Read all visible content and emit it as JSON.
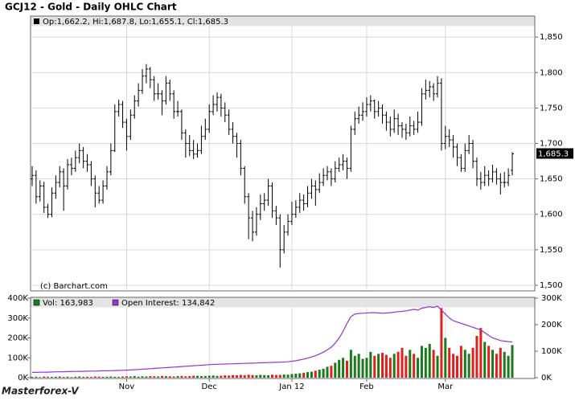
{
  "chart_data": {
    "type": "ohlc",
    "title": "GCJ12 - Gold - Daily OHLC Chart",
    "header": "Op:1,662.2, Hi:1,687.8, Lo:1,655.1, Cl:1,685.3",
    "credit": "(c) Barchart.com",
    "watermark": "Masterforex-V",
    "color": "#000000",
    "last_price_label": "1,685.3",
    "grid": true,
    "ylim": [
      1492,
      1865
    ],
    "yticks": [
      {
        "value": 1500,
        "label": "1,500"
      },
      {
        "value": 1550,
        "label": "1,550"
      },
      {
        "value": 1600,
        "label": "1,600"
      },
      {
        "value": 1650,
        "label": "1,650"
      },
      {
        "value": 1700,
        "label": "1,700"
      },
      {
        "value": 1750,
        "label": "1,750"
      },
      {
        "value": 1800,
        "label": "1,800"
      },
      {
        "value": 1850,
        "label": "1,850"
      }
    ],
    "categories": [
      null,
      null,
      null,
      null,
      null,
      null,
      null,
      null,
      null,
      null,
      null,
      null,
      null,
      null,
      null,
      null,
      null,
      null,
      null,
      null,
      null,
      null,
      null,
      null,
      "Nov",
      null,
      null,
      null,
      null,
      null,
      null,
      null,
      null,
      null,
      null,
      null,
      null,
      null,
      null,
      null,
      null,
      null,
      null,
      null,
      null,
      "Dec",
      null,
      null,
      null,
      null,
      null,
      null,
      null,
      null,
      null,
      null,
      null,
      null,
      null,
      null,
      null,
      null,
      null,
      null,
      null,
      null,
      "Jan 12",
      null,
      null,
      null,
      null,
      null,
      null,
      null,
      null,
      null,
      null,
      null,
      null,
      null,
      null,
      null,
      null,
      null,
      null,
      "Feb",
      null,
      null,
      null,
      null,
      null,
      null,
      null,
      null,
      null,
      null,
      null,
      null,
      null,
      null,
      null,
      null,
      null,
      null,
      null,
      "Mar",
      null,
      null,
      null,
      null,
      null,
      null,
      null,
      null,
      null,
      null,
      null,
      null,
      null,
      null,
      null,
      null,
      null
    ],
    "ohlc": [
      [
        1650,
        1668,
        1640,
        1655
      ],
      [
        1655,
        1662,
        1615,
        1625
      ],
      [
        1625,
        1648,
        1618,
        1640
      ],
      [
        1640,
        1646,
        1602,
        1610
      ],
      [
        1610,
        1615,
        1595,
        1600
      ],
      [
        1600,
        1638,
        1596,
        1630
      ],
      [
        1630,
        1655,
        1622,
        1645
      ],
      [
        1645,
        1668,
        1638,
        1660
      ],
      [
        1660,
        1665,
        1605,
        1640
      ],
      [
        1640,
        1678,
        1635,
        1670
      ],
      [
        1670,
        1680,
        1655,
        1665
      ],
      [
        1665,
        1690,
        1660,
        1680
      ],
      [
        1680,
        1700,
        1672,
        1690
      ],
      [
        1690,
        1695,
        1665,
        1675
      ],
      [
        1675,
        1685,
        1660,
        1670
      ],
      [
        1670,
        1675,
        1640,
        1650
      ],
      [
        1650,
        1655,
        1610,
        1630
      ],
      [
        1630,
        1640,
        1615,
        1620
      ],
      [
        1620,
        1648,
        1615,
        1640
      ],
      [
        1640,
        1668,
        1635,
        1660
      ],
      [
        1660,
        1700,
        1655,
        1690
      ],
      [
        1690,
        1755,
        1688,
        1745
      ],
      [
        1745,
        1762,
        1738,
        1755
      ],
      [
        1755,
        1760,
        1722,
        1730
      ],
      [
        1730,
        1735,
        1690,
        1710
      ],
      [
        1710,
        1748,
        1705,
        1740
      ],
      [
        1740,
        1768,
        1735,
        1760
      ],
      [
        1760,
        1785,
        1752,
        1775
      ],
      [
        1775,
        1805,
        1770,
        1795
      ],
      [
        1795,
        1812,
        1785,
        1805
      ],
      [
        1805,
        1808,
        1778,
        1790
      ],
      [
        1790,
        1795,
        1760,
        1770
      ],
      [
        1770,
        1785,
        1762,
        1770
      ],
      [
        1770,
        1775,
        1740,
        1760
      ],
      [
        1760,
        1795,
        1755,
        1785
      ],
      [
        1785,
        1790,
        1760,
        1770
      ],
      [
        1770,
        1775,
        1735,
        1745
      ],
      [
        1745,
        1760,
        1738,
        1745
      ],
      [
        1745,
        1748,
        1705,
        1715
      ],
      [
        1715,
        1720,
        1680,
        1700
      ],
      [
        1700,
        1712,
        1682,
        1690
      ],
      [
        1690,
        1705,
        1678,
        1685
      ],
      [
        1685,
        1700,
        1680,
        1690
      ],
      [
        1690,
        1725,
        1685,
        1710
      ],
      [
        1710,
        1735,
        1705,
        1720
      ],
      [
        1720,
        1755,
        1715,
        1745
      ],
      [
        1745,
        1768,
        1740,
        1755
      ],
      [
        1755,
        1772,
        1745,
        1765
      ],
      [
        1765,
        1770,
        1738,
        1750
      ],
      [
        1750,
        1758,
        1730,
        1740
      ],
      [
        1740,
        1748,
        1712,
        1720
      ],
      [
        1720,
        1730,
        1700,
        1710
      ],
      [
        1710,
        1715,
        1680,
        1700
      ],
      [
        1700,
        1705,
        1655,
        1665
      ],
      [
        1665,
        1668,
        1615,
        1625
      ],
      [
        1625,
        1630,
        1565,
        1595
      ],
      [
        1595,
        1605,
        1562,
        1575
      ],
      [
        1575,
        1610,
        1570,
        1600
      ],
      [
        1600,
        1628,
        1592,
        1615
      ],
      [
        1615,
        1630,
        1605,
        1620
      ],
      [
        1620,
        1650,
        1612,
        1640
      ],
      [
        1640,
        1645,
        1595,
        1605
      ],
      [
        1605,
        1612,
        1585,
        1595
      ],
      [
        1595,
        1600,
        1525,
        1550
      ],
      [
        1550,
        1585,
        1545,
        1575
      ],
      [
        1575,
        1600,
        1570,
        1590
      ],
      [
        1590,
        1618,
        1585,
        1600
      ],
      [
        1600,
        1620,
        1595,
        1610
      ],
      [
        1610,
        1630,
        1602,
        1620
      ],
      [
        1620,
        1628,
        1605,
        1615
      ],
      [
        1615,
        1640,
        1610,
        1630
      ],
      [
        1630,
        1650,
        1622,
        1640
      ],
      [
        1640,
        1648,
        1612,
        1635
      ],
      [
        1635,
        1658,
        1630,
        1645
      ],
      [
        1645,
        1665,
        1640,
        1655
      ],
      [
        1655,
        1668,
        1648,
        1660
      ],
      [
        1660,
        1665,
        1640,
        1650
      ],
      [
        1650,
        1675,
        1645,
        1665
      ],
      [
        1665,
        1680,
        1660,
        1670
      ],
      [
        1670,
        1685,
        1662,
        1675
      ],
      [
        1675,
        1680,
        1650,
        1665
      ],
      [
        1665,
        1725,
        1660,
        1720
      ],
      [
        1720,
        1745,
        1712,
        1735
      ],
      [
        1735,
        1752,
        1728,
        1740
      ],
      [
        1740,
        1758,
        1732,
        1745
      ],
      [
        1745,
        1765,
        1738,
        1755
      ],
      [
        1755,
        1768,
        1745,
        1760
      ],
      [
        1760,
        1762,
        1735,
        1745
      ],
      [
        1745,
        1760,
        1738,
        1750
      ],
      [
        1750,
        1755,
        1728,
        1740
      ],
      [
        1740,
        1745,
        1718,
        1730
      ],
      [
        1730,
        1738,
        1710,
        1720
      ],
      [
        1720,
        1748,
        1715,
        1735
      ],
      [
        1735,
        1742,
        1712,
        1725
      ],
      [
        1725,
        1730,
        1708,
        1720
      ],
      [
        1720,
        1728,
        1705,
        1715
      ],
      [
        1715,
        1738,
        1710,
        1725
      ],
      [
        1725,
        1732,
        1712,
        1720
      ],
      [
        1720,
        1745,
        1715,
        1730
      ],
      [
        1730,
        1778,
        1725,
        1770
      ],
      [
        1770,
        1790,
        1762,
        1775
      ],
      [
        1775,
        1788,
        1765,
        1780
      ],
      [
        1780,
        1785,
        1760,
        1770
      ],
      [
        1770,
        1795,
        1765,
        1785
      ],
      [
        1785,
        1792,
        1690,
        1700
      ],
      [
        1700,
        1725,
        1692,
        1710
      ],
      [
        1710,
        1720,
        1695,
        1705
      ],
      [
        1705,
        1712,
        1680,
        1695
      ],
      [
        1695,
        1700,
        1668,
        1680
      ],
      [
        1680,
        1685,
        1660,
        1665
      ],
      [
        1665,
        1700,
        1660,
        1690
      ],
      [
        1690,
        1712,
        1685,
        1700
      ],
      [
        1700,
        1705,
        1665,
        1675
      ],
      [
        1675,
        1680,
        1640,
        1650
      ],
      [
        1650,
        1660,
        1635,
        1645
      ],
      [
        1645,
        1668,
        1640,
        1655
      ],
      [
        1655,
        1662,
        1640,
        1650
      ],
      [
        1650,
        1670,
        1645,
        1660
      ],
      [
        1660,
        1665,
        1642,
        1650
      ],
      [
        1650,
        1658,
        1628,
        1645
      ],
      [
        1645,
        1660,
        1638,
        1645
      ],
      [
        1645,
        1665,
        1640,
        1655
      ],
      [
        1662.2,
        1687.8,
        1655.1,
        1685.3
      ]
    ],
    "volume": {
      "type": "bar",
      "label": "Vol: 163,983",
      "up_color": "#1b7a1b",
      "down_color": "#e0201c",
      "ylim": [
        0,
        400000
      ],
      "yticks": [
        {
          "value": 0,
          "label": "0K"
        },
        {
          "value": 100000,
          "label": "100K"
        },
        {
          "value": 200000,
          "label": "200K"
        },
        {
          "value": 300000,
          "label": "300K"
        },
        {
          "value": 400000,
          "label": "400K"
        }
      ],
      "values": [
        4000,
        5000,
        3000,
        6000,
        5000,
        4000,
        5000,
        6000,
        4000,
        5000,
        3000,
        5000,
        6000,
        4000,
        5000,
        4000,
        6000,
        5000,
        4000,
        5000,
        6000,
        5000,
        4000,
        6000,
        7000,
        6000,
        8000,
        5000,
        7000,
        6000,
        8000,
        7000,
        6000,
        9000,
        8000,
        7000,
        6000,
        8000,
        9000,
        7000,
        8000,
        10000,
        9000,
        8000,
        9000,
        10000,
        11000,
        9000,
        10000,
        12000,
        11000,
        13000,
        12000,
        14000,
        12000,
        15000,
        13000,
        12000,
        14000,
        13000,
        12000,
        15000,
        13000,
        14000,
        16000,
        15000,
        18000,
        20000,
        22000,
        25000,
        28000,
        30000,
        35000,
        40000,
        45000,
        55000,
        60000,
        75000,
        90000,
        100000,
        85000,
        140000,
        110000,
        120000,
        95000,
        100000,
        130000,
        110000,
        120000,
        125000,
        115000,
        100000,
        120000,
        130000,
        150000,
        110000,
        140000,
        120000,
        100000,
        160000,
        150000,
        170000,
        140000,
        110000,
        350000,
        200000,
        150000,
        120000,
        110000,
        160000,
        140000,
        120000,
        150000,
        210000,
        250000,
        180000,
        160000,
        140000,
        120000,
        150000,
        130000,
        110000,
        163983
      ]
    },
    "open_interest": {
      "type": "line",
      "label": "Open Interest: 134,842",
      "color": "#9933cc",
      "axis": "y2",
      "y2lim": [
        0,
        300000
      ],
      "y2ticks": [
        {
          "value": 0,
          "label": "0K"
        },
        {
          "value": 100000,
          "label": "100K"
        },
        {
          "value": 200000,
          "label": "200K"
        },
        {
          "value": 300000,
          "label": "300K"
        }
      ],
      "values": [
        20000,
        20000,
        20500,
        21000,
        21000,
        21500,
        22000,
        22000,
        22500,
        23000,
        23000,
        23500,
        24000,
        24000,
        24500,
        25000,
        25000,
        25500,
        26000,
        26000,
        26500,
        27000,
        27500,
        28000,
        28500,
        29000,
        30000,
        31000,
        32000,
        33000,
        34000,
        35000,
        36000,
        37000,
        38000,
        39000,
        40000,
        41000,
        42000,
        43000,
        44000,
        45000,
        46000,
        47000,
        48000,
        49000,
        50000,
        50500,
        51000,
        51500,
        52000,
        52500,
        53000,
        53500,
        54000,
        54500,
        55000,
        55500,
        56000,
        56500,
        57000,
        57500,
        58000,
        58500,
        59000,
        60000,
        62000,
        64000,
        67000,
        70000,
        74000,
        78000,
        83000,
        89000,
        96000,
        105000,
        115000,
        130000,
        150000,
        175000,
        205000,
        230000,
        240000,
        242000,
        243000,
        244000,
        245000,
        245000,
        244000,
        243000,
        244000,
        245000,
        247000,
        249000,
        250000,
        252000,
        255000,
        258000,
        255000,
        262000,
        265000,
        268000,
        265000,
        270000,
        255000,
        240000,
        225000,
        215000,
        210000,
        205000,
        200000,
        195000,
        190000,
        185000,
        180000,
        170000,
        160000,
        150000,
        145000,
        140000,
        138000,
        136000,
        134842
      ]
    }
  }
}
